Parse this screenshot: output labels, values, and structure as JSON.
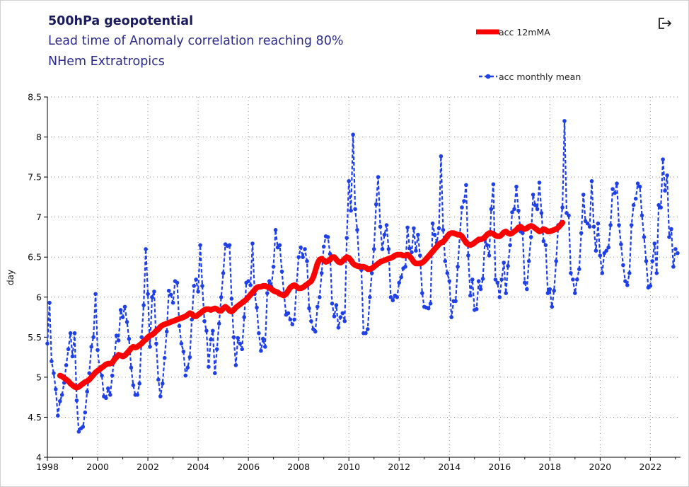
{
  "header": {
    "title": "500hPa geopotential",
    "subtitle1": "Lead time of Anomaly correlation reaching 80%",
    "subtitle2": "NHem Extratropics"
  },
  "icons": {
    "export": "export-icon"
  },
  "colors": {
    "ma": "#ff0000",
    "monthly": "#1f3fe8",
    "grid": "#8a8a8a"
  },
  "chart_data": {
    "type": "line",
    "title": "500hPa geopotential",
    "xlabel": "",
    "ylabel": "day",
    "xlim": [
      1998,
      2023.2
    ],
    "ylim": [
      4,
      8.5
    ],
    "x_ticks": [
      1998,
      2000,
      2002,
      2004,
      2006,
      2008,
      2010,
      2012,
      2014,
      2016,
      2018,
      2020,
      2022
    ],
    "y_ticks": [
      4,
      4.5,
      5,
      5.5,
      6,
      6.5,
      7,
      7.5,
      8,
      8.5
    ],
    "y_tick_labels": [
      "4",
      "4.5",
      "5",
      "5.5",
      "6",
      "6.5",
      "7",
      "7.5",
      "8",
      "8.5"
    ],
    "grid": true,
    "legend_position": "top-right",
    "series": [
      {
        "name": "acc 12mMA",
        "style": "thick-line",
        "x_start": 1998.5,
        "x_step": 0.0833333,
        "values": [
          5.02,
          5.01,
          4.99,
          4.97,
          4.95,
          4.92,
          4.9,
          4.88,
          4.87,
          4.88,
          4.9,
          4.92,
          4.94,
          4.95,
          4.97,
          5.0,
          5.03,
          5.06,
          5.08,
          5.1,
          5.12,
          5.14,
          5.16,
          5.17,
          5.17,
          5.18,
          5.22,
          5.25,
          5.28,
          5.27,
          5.26,
          5.27,
          5.3,
          5.33,
          5.36,
          5.38,
          5.37,
          5.38,
          5.4,
          5.42,
          5.45,
          5.47,
          5.5,
          5.52,
          5.53,
          5.55,
          5.58,
          5.6,
          5.63,
          5.65,
          5.66,
          5.67,
          5.68,
          5.69,
          5.7,
          5.71,
          5.72,
          5.73,
          5.74,
          5.75,
          5.76,
          5.78,
          5.8,
          5.79,
          5.76,
          5.76,
          5.78,
          5.8,
          5.82,
          5.84,
          5.85,
          5.85,
          5.84,
          5.85,
          5.86,
          5.85,
          5.83,
          5.83,
          5.86,
          5.88,
          5.86,
          5.83,
          5.82,
          5.84,
          5.87,
          5.89,
          5.91,
          5.93,
          5.95,
          5.97,
          6.0,
          6.03,
          6.06,
          6.09,
          6.12,
          6.13,
          6.13,
          6.14,
          6.14,
          6.13,
          6.12,
          6.1,
          6.08,
          6.07,
          6.06,
          6.04,
          6.03,
          6.02,
          6.04,
          6.08,
          6.12,
          6.14,
          6.15,
          6.13,
          6.11,
          6.11,
          6.12,
          6.14,
          6.16,
          6.18,
          6.2,
          6.25,
          6.33,
          6.42,
          6.47,
          6.48,
          6.46,
          6.44,
          6.45,
          6.47,
          6.5,
          6.5,
          6.47,
          6.44,
          6.43,
          6.45,
          6.48,
          6.5,
          6.49,
          6.46,
          6.42,
          6.4,
          6.39,
          6.38,
          6.38,
          6.38,
          6.37,
          6.35,
          6.35,
          6.36,
          6.38,
          6.4,
          6.42,
          6.44,
          6.45,
          6.46,
          6.47,
          6.48,
          6.49,
          6.5,
          6.52,
          6.53,
          6.53,
          6.53,
          6.52,
          6.52,
          6.53,
          6.51,
          6.48,
          6.44,
          6.42,
          6.42,
          6.42,
          6.43,
          6.45,
          6.48,
          6.51,
          6.54,
          6.57,
          6.6,
          6.63,
          6.66,
          6.68,
          6.69,
          6.72,
          6.76,
          6.79,
          6.8,
          6.8,
          6.79,
          6.78,
          6.78,
          6.76,
          6.72,
          6.68,
          6.66,
          6.65,
          6.66,
          6.68,
          6.7,
          6.72,
          6.72,
          6.73,
          6.75,
          6.78,
          6.8,
          6.8,
          6.79,
          6.77,
          6.76,
          6.76,
          6.78,
          6.81,
          6.82,
          6.8,
          6.79,
          6.8,
          6.82,
          6.84,
          6.87,
          6.88,
          6.86,
          6.85,
          6.86,
          6.88,
          6.89,
          6.88,
          6.86,
          6.84,
          6.82,
          6.83,
          6.85,
          6.84,
          6.82,
          6.82,
          6.83,
          6.84,
          6.85,
          6.87,
          6.9,
          6.93
        ]
      },
      {
        "name": "acc monthly mean",
        "style": "dashed-line-dots",
        "x_start": 1998.0,
        "x_step": 0.0833333,
        "values": [
          5.42,
          5.93,
          5.2,
          5.05,
          4.85,
          4.52,
          4.7,
          4.78,
          4.93,
          5.15,
          5.35,
          5.55,
          5.26,
          5.55,
          4.71,
          4.32,
          4.36,
          4.38,
          4.56,
          4.82,
          5.05,
          5.38,
          5.5,
          6.04,
          5.34,
          5.08,
          5.02,
          4.76,
          4.74,
          4.86,
          4.78,
          5.02,
          5.25,
          5.52,
          5.46,
          5.84,
          5.75,
          5.88,
          5.69,
          5.48,
          5.12,
          4.9,
          4.78,
          4.78,
          4.92,
          5.5,
          5.9,
          6.6,
          6.04,
          5.38,
          6.0,
          6.07,
          5.42,
          4.97,
          4.76,
          4.92,
          5.24,
          5.57,
          6.08,
          6.03,
          5.93,
          6.2,
          6.18,
          5.64,
          5.42,
          5.32,
          5.02,
          5.12,
          5.25,
          5.72,
          6.14,
          6.22,
          6.07,
          6.65,
          6.14,
          5.7,
          5.58,
          5.13,
          5.47,
          5.58,
          5.05,
          5.35,
          5.67,
          6.0,
          6.3,
          6.66,
          6.64,
          6.65,
          5.98,
          5.5,
          5.15,
          5.49,
          5.42,
          5.35,
          5.75,
          6.18,
          6.2,
          6.15,
          6.67,
          6.04,
          5.87,
          5.55,
          5.33,
          5.48,
          5.38,
          6.05,
          6.2,
          6.13,
          6.38,
          6.84,
          6.62,
          6.65,
          6.32,
          6.05,
          5.78,
          5.8,
          5.72,
          5.66,
          5.72,
          6.15,
          6.5,
          6.62,
          6.5,
          6.6,
          6.45,
          5.86,
          5.7,
          5.6,
          5.57,
          5.88,
          6.0,
          6.3,
          6.63,
          6.76,
          6.75,
          6.54,
          5.92,
          5.76,
          5.9,
          5.62,
          5.75,
          5.8,
          5.7,
          6.74,
          7.45,
          7.08,
          8.03,
          7.1,
          6.84,
          6.4,
          6.34,
          5.55,
          5.55,
          5.6,
          6.0,
          6.3,
          6.6,
          7.16,
          7.5,
          6.88,
          6.6,
          6.78,
          6.9,
          6.6,
          6.0,
          5.96,
          6.02,
          6.0,
          6.18,
          6.25,
          6.36,
          6.38,
          6.87,
          6.61,
          6.56,
          6.86,
          6.58,
          6.78,
          6.52,
          6.05,
          5.88,
          5.87,
          5.86,
          5.92,
          6.92,
          6.78,
          6.68,
          6.86,
          7.76,
          6.84,
          6.45,
          6.3,
          6.2,
          5.75,
          5.95,
          5.95,
          6.38,
          6.78,
          7.12,
          7.2,
          7.4,
          6.52,
          6.02,
          6.22,
          5.84,
          5.85,
          6.2,
          6.1,
          6.23,
          6.72,
          6.65,
          6.52,
          7.1,
          7.41,
          6.22,
          6.18,
          6.0,
          6.22,
          6.43,
          6.05,
          6.39,
          6.65,
          7.06,
          7.1,
          7.38,
          7.08,
          6.82,
          6.8,
          6.18,
          6.1,
          6.45,
          6.75,
          7.28,
          7.15,
          7.1,
          7.43,
          7.05,
          6.7,
          6.65,
          6.05,
          6.1,
          5.88,
          6.08,
          6.45,
          6.9,
          6.9,
          7.12,
          8.2,
          7.05,
          7.02,
          6.3,
          6.22,
          6.05,
          6.22,
          6.35,
          6.8,
          7.28,
          6.95,
          6.92,
          6.88,
          7.45,
          6.88,
          6.58,
          6.92,
          6.52,
          6.3,
          6.55,
          6.58,
          6.62,
          6.9,
          7.35,
          7.3,
          7.42,
          6.9,
          6.66,
          6.4,
          6.2,
          6.15,
          6.3,
          6.9,
          7.15,
          7.23,
          7.42,
          7.38,
          7.02,
          6.75,
          6.45,
          6.12,
          6.14,
          6.45,
          6.67,
          6.3,
          7.15,
          7.12,
          7.72,
          7.33,
          7.52,
          6.75,
          6.85,
          6.38,
          6.6,
          6.55
        ]
      }
    ]
  }
}
